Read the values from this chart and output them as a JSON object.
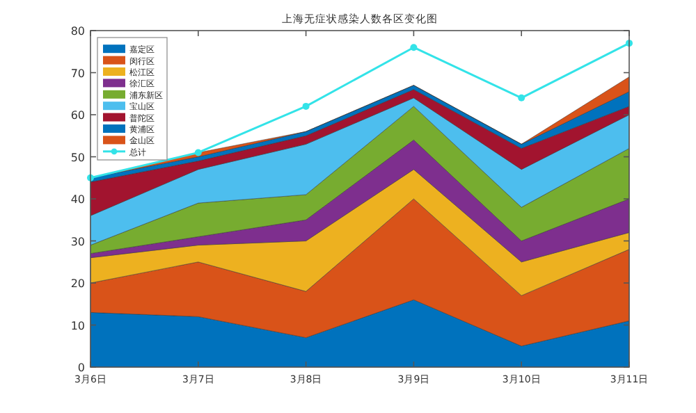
{
  "chart_data": {
    "type": "area",
    "stacked": true,
    "title": "上海无症状感染人数各区变化图",
    "categories": [
      "3月6日",
      "3月7日",
      "3月8日",
      "3月9日",
      "3月10日",
      "3月11日"
    ],
    "series": [
      {
        "name": "嘉定区",
        "color": "#0072bd",
        "values": [
          13,
          12,
          7,
          16,
          5,
          11
        ]
      },
      {
        "name": "闵行区",
        "color": "#d95319",
        "values": [
          7,
          13,
          11,
          24,
          12,
          17
        ]
      },
      {
        "name": "松江区",
        "color": "#edb120",
        "values": [
          6,
          4,
          12,
          7,
          8,
          4
        ]
      },
      {
        "name": "徐汇区",
        "color": "#7e2f8e",
        "values": [
          1,
          2,
          5,
          7,
          5,
          8
        ]
      },
      {
        "name": "浦东新区",
        "color": "#77ac30",
        "values": [
          2,
          8,
          6,
          8,
          8,
          12
        ]
      },
      {
        "name": "宝山区",
        "color": "#4dbeee",
        "values": [
          7,
          8,
          12,
          2,
          9,
          8
        ]
      },
      {
        "name": "普陀区",
        "color": "#a2142f",
        "values": [
          8,
          2,
          2,
          2,
          5,
          2
        ]
      },
      {
        "name": "黄浦区",
        "color": "#0072bd",
        "values": [
          1,
          1,
          1,
          1,
          1,
          3.5
        ]
      },
      {
        "name": "金山区",
        "color": "#d95319",
        "values": [
          0,
          1,
          0,
          0,
          0,
          3.5
        ]
      },
      {
        "name": "总计",
        "type": "line",
        "marker": "circle",
        "color": "#33e3e8",
        "values": [
          45,
          51,
          62,
          76,
          64,
          77
        ]
      }
    ],
    "ylim": [
      0,
      80
    ],
    "yticks": [
      0,
      10,
      20,
      30,
      40,
      50,
      60,
      70,
      80
    ],
    "legend": "top left"
  }
}
